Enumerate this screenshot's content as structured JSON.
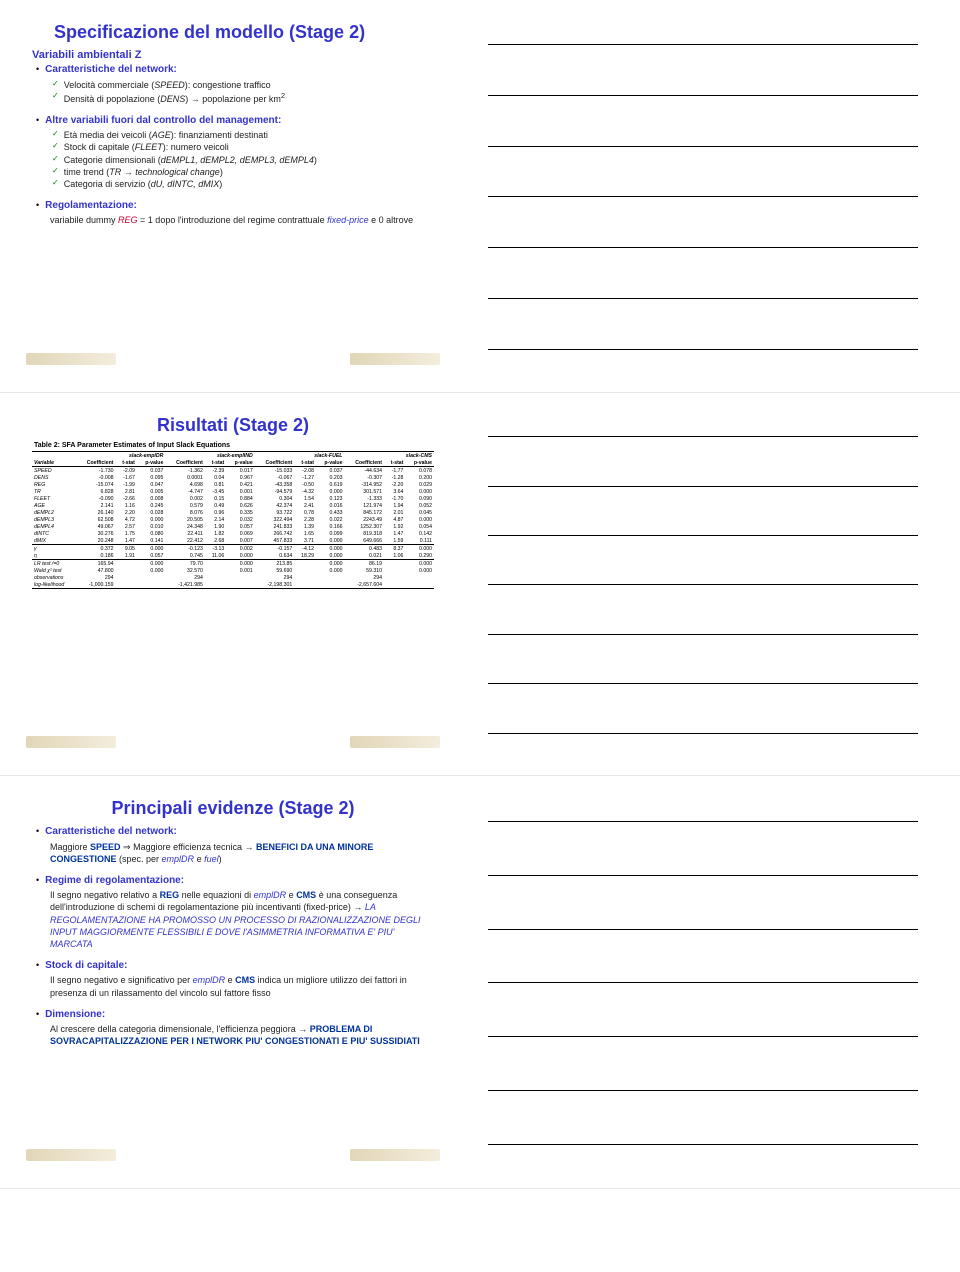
{
  "colors": {
    "title": "#3333cc",
    "check": "#008000",
    "strong_blue": "#003399",
    "text": "#222222",
    "logo_gradient_from": "#e2d6b8",
    "logo_gradient_to": "#f3eddc"
  },
  "slide1": {
    "title": "Specificazione del modello (Stage 2)",
    "varZ": "Variabili ambientali Z",
    "sections": [
      {
        "lead": "Caratteristiche del network:",
        "items": [
          [
            "Velocità commerciale (",
            "SPEED",
            "): congestione traffico"
          ],
          [
            "Densità di popolazione (",
            "DENS",
            ") → popolazione per km",
            "2"
          ]
        ]
      },
      {
        "lead": "Altre variabili fuori dal controllo del management:",
        "items": [
          [
            "Età media dei veicoli (",
            "AGE",
            "): finanziamenti destinati"
          ],
          [
            "Stock di capitale (",
            "FLEET",
            "): numero veicoli"
          ],
          [
            "Categorie dimensionali (",
            "dEMPL1, dEMPL2, dEMPL3, dEMPL4",
            ")"
          ],
          [
            "time trend (",
            "TR",
            " → ",
            "technological change",
            ")"
          ],
          [
            "Categoria di servizio (",
            "dU, dINTC, dMIX",
            ")"
          ]
        ]
      },
      {
        "lead": "Regolamentazione:",
        "text": [
          "variabile dummy ",
          "REG",
          " = 1 dopo l'introduzione del regime contrattuale ",
          "fixed-price",
          " e 0 altrove"
        ]
      }
    ]
  },
  "slide2": {
    "title": "Risultati (Stage 2)",
    "table_title": "Table 2: SFA Parameter Estimates of Input Slack Equations",
    "groups": [
      "slack-emplDR",
      "slack-emplIND",
      "slack-FUEL",
      "slack-CMS"
    ],
    "col_headers": [
      "Variable",
      "Coefficient",
      "t-stat",
      "p-value",
      "Coefficient",
      "t-stat",
      "p-value",
      "Coefficient",
      "t-stat",
      "p-value",
      "Coefficient",
      "t-stat",
      "p-value"
    ],
    "rows": [
      [
        "SPEED",
        "-1.730",
        "-2.09",
        "0.037",
        "-1.362",
        "-2.39",
        "0.017",
        "-15.033",
        "-2.08",
        "0.037",
        "-44.634",
        "-1.77",
        "0.078"
      ],
      [
        "DENS",
        "-0.008",
        "-1.67",
        "0.095",
        "0.0001",
        "0.04",
        "0.967",
        "-0.067",
        "-1.27",
        "0.203",
        "-0.307",
        "-1.28",
        "0.200"
      ],
      [
        "REG",
        "-15.074",
        "-1.99",
        "0.047",
        "4.698",
        "0.81",
        "0.421",
        "-43.358",
        "-0.50",
        "0.619",
        "-314.952",
        "-2.20",
        "0.029"
      ],
      [
        "TR",
        "6.828",
        "2.81",
        "0.005",
        "-4.747",
        "-3.45",
        "0.001",
        "-94.579",
        "-4.32",
        "0.000",
        "301.571",
        "3.64",
        "0.000"
      ],
      [
        "FLEET",
        "-0.090",
        "-2.66",
        "0.008",
        "0.002",
        "0.15",
        "0.884",
        "0.304",
        "1.54",
        "0.123",
        "-1.333",
        "-1.70",
        "0.090"
      ],
      [
        "AGE",
        "2.141",
        "1.16",
        "0.245",
        "0.579",
        "0.49",
        "0.626",
        "42.374",
        "2.41",
        "0.016",
        "121.974",
        "1.94",
        "0.052"
      ],
      [
        "dEMPL2",
        "26.140",
        "2.20",
        "0.028",
        "8.076",
        "0.96",
        "0.335",
        "93.722",
        "0.78",
        "0.433",
        "845.172",
        "2.01",
        "0.045"
      ],
      [
        "dEMPL3",
        "62.508",
        "4.72",
        "0.000",
        "20.505",
        "2.14",
        "0.032",
        "322.494",
        "2.28",
        "0.022",
        "2243.49",
        "4.87",
        "0.000"
      ],
      [
        "dEMPL4",
        "49.067",
        "2.57",
        "0.010",
        "24.348",
        "1.90",
        "0.057",
        "241.833",
        "1.39",
        "0.166",
        "1252.307",
        "1.92",
        "0.054"
      ],
      [
        "dINTC",
        "30.276",
        "1.75",
        "0.080",
        "22.411",
        "1.82",
        "0.069",
        "266.742",
        "1.65",
        "0.099",
        "819.318",
        "1.47",
        "0.142"
      ],
      [
        "dMIX",
        "20.248",
        "1.47",
        "0.141",
        "22.412",
        "2.68",
        "0.007",
        "457.833",
        "3.71",
        "0.000",
        "649.666",
        "1.59",
        "0.111"
      ],
      [
        "γ",
        "0.372",
        "9.05",
        "0.000",
        "-0.123",
        "-3.13",
        "0.002",
        "-0.157",
        "-4.12",
        "0.000",
        "0.483",
        "8.37",
        "0.000"
      ],
      [
        "η",
        "0.186",
        "1.91",
        "0.057",
        "0.745",
        "11.06",
        "0.000",
        "0.634",
        "18.29",
        "0.000",
        "0.021",
        "1.06",
        "0.290"
      ],
      [
        "LR test /=0",
        "165.94",
        "",
        "0.000",
        "79.70",
        "",
        "0.000",
        "213.85",
        "",
        "0.000",
        "86.19",
        "",
        "0.000"
      ],
      [
        "Wald χ² test",
        "47.800",
        "",
        "0.000",
        "32.570",
        "",
        "0.001",
        "59.690",
        "",
        "0.000",
        "59.310",
        "",
        "0.000"
      ],
      [
        "observations",
        "294",
        "",
        "",
        "294",
        "",
        "",
        "294",
        "",
        "",
        "294",
        "",
        ""
      ],
      [
        "log-likelihood",
        "-1,000.159",
        "",
        "",
        "-1,421.985",
        "",
        "",
        "-2,198.301",
        "",
        "",
        "-2,657.604",
        "",
        ""
      ]
    ]
  },
  "slide3": {
    "title": "Principali evidenze (Stage 2)",
    "items": [
      {
        "lead": "Caratteristiche del network:",
        "body": "Maggiore |SPEED| ⇒ Maggiore efficienza tecnica → |BENEFICI DA UNA MINORE CONGESTIONE| (spec. per |emplDR| e |fuel|)"
      },
      {
        "lead": "Regime di regolamentazione:",
        "body": "Il segno negativo relativo a |REG| nelle equazioni di |emplDR| e |CMS| è una conseguenza dell'introduzione di schemi di regolamentazione più incentivanti (fixed-price) → |LA REGOLAMENTAZIONE HA PROMOSSO UN PROCESSO DI RAZIONALIZZAZIONE DEGLI INPUT MAGGIORMENTE FLESSIBILI E DOVE l'ASIMMETRIA INFORMATIVA E' PIU' MARCATA|"
      },
      {
        "lead": "Stock di capitale:",
        "body": "Il segno negativo e significativo per |emplDR| e |CMS| indica un migliore utilizzo dei fattori in presenza di un rilassamento del vincolo sul fattore fisso"
      },
      {
        "lead": "Dimensione:",
        "body": "Al crescere della categoria dimensionale, l'efficienza peggiora → |PROBLEMA DI SOVRACAPITALIZZAZIONE PER I NETWORK PIU' CONGESTIONATI E PIU' SUSSIDIATI|"
      }
    ]
  }
}
